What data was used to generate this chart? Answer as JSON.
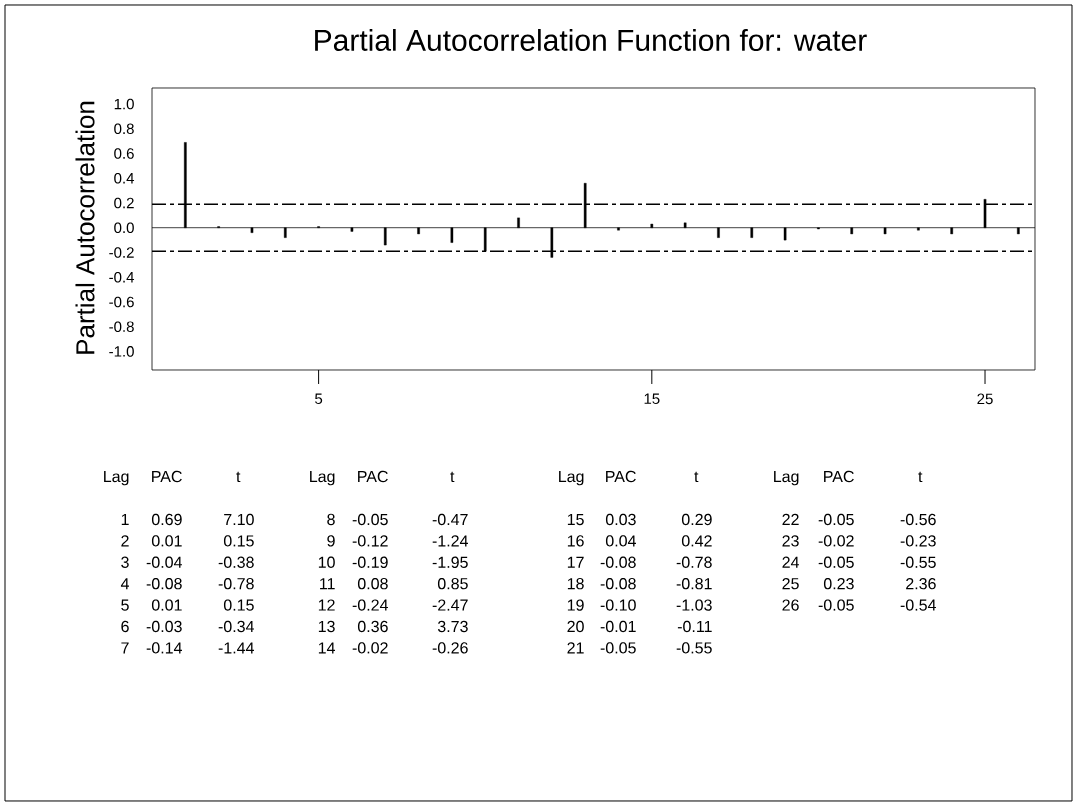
{
  "chart_data": {
    "type": "bar",
    "title": "Partial Autocorrelation Function for: water",
    "ylabel": "Partial Autocorrelation",
    "x": [
      1,
      2,
      3,
      4,
      5,
      6,
      7,
      8,
      9,
      10,
      11,
      12,
      13,
      14,
      15,
      16,
      17,
      18,
      19,
      20,
      21,
      22,
      23,
      24,
      25,
      26
    ],
    "values": [
      0.69,
      0.01,
      -0.04,
      -0.08,
      0.01,
      -0.03,
      -0.14,
      -0.05,
      -0.12,
      -0.19,
      0.08,
      -0.24,
      0.36,
      -0.02,
      0.03,
      0.04,
      -0.08,
      -0.08,
      -0.1,
      -0.01,
      -0.05,
      -0.05,
      -0.02,
      -0.05,
      0.23,
      -0.05
    ],
    "color": "#000000",
    "xlim": [
      0,
      26.5
    ],
    "xticks": [
      5,
      15,
      25
    ],
    "ylim": [
      -1.15,
      1.13
    ],
    "yticks": [
      {
        "value": -1,
        "label": "-1.0"
      },
      {
        "value": -0.8,
        "label": "-0.8"
      },
      {
        "value": -0.6,
        "label": "-0.6"
      },
      {
        "value": -0.4,
        "label": "-0.4"
      },
      {
        "value": -0.2,
        "label": "-0.2"
      },
      {
        "value": 0,
        "label": "0.0"
      },
      {
        "value": 0.2,
        "label": "0.2"
      },
      {
        "value": 0.4,
        "label": "0.4"
      },
      {
        "value": 0.6,
        "label": "0.6"
      },
      {
        "value": 0.8,
        "label": "0.8"
      },
      {
        "value": 1,
        "label": "1.0"
      }
    ],
    "ref_lines": [
      {
        "axis": "y",
        "value": 0.19,
        "color": "#000000",
        "line_style": "dashed"
      },
      {
        "axis": "y",
        "value": -0.19,
        "color": "#000000",
        "line_style": "dashed"
      }
    ],
    "annotations": [
      "Lag",
      "PAC",
      "t",
      "1",
      "0.69",
      "7.10",
      "2",
      "0.01",
      "0.15",
      "3",
      "-0.04",
      "-0.38",
      "4",
      "-0.08",
      "-0.78",
      "5",
      "0.01",
      "0.15",
      "6",
      "-0.03",
      "-0.34",
      "7",
      "-0.14",
      "-1.44",
      "8",
      "-0.05",
      "-0.47",
      "9",
      "-0.12",
      "-1.24",
      "10",
      "-0.19",
      "-1.95",
      "11",
      "0.08",
      "0.85",
      "12",
      "-0.24",
      "-2.47",
      "13",
      "0.36",
      "3.73",
      "14",
      "-0.02",
      "-0.26",
      "15",
      "0.03",
      "0.29",
      "16",
      "0.04",
      "0.42",
      "17",
      "-0.08",
      "-0.78",
      "18",
      "-0.08",
      "-0.81",
      "19",
      "-0.10",
      "-1.03",
      "20",
      "-0.01",
      "-0.11",
      "21",
      "-0.05",
      "-0.55",
      "22",
      "-0.05",
      "-0.56",
      "23",
      "-0.02",
      "-0.23",
      "24",
      "-0.05",
      "-0.55",
      "25",
      "0.23",
      "2.36",
      "26",
      "-0.05",
      "-0.54"
    ]
  }
}
